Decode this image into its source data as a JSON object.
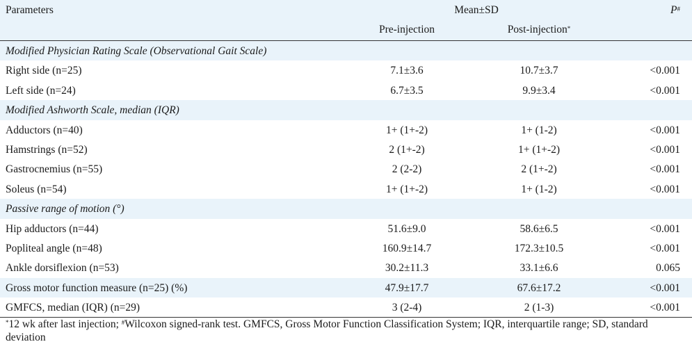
{
  "header": {
    "parameters": "Parameters",
    "group": "Mean±SD",
    "p_label": "P",
    "p_mark": "#",
    "pre": "Pre-injection",
    "post": "Post-injection",
    "post_mark": "*"
  },
  "sections": [
    {
      "title": "Modified Physician Rating Scale (Observational Gait Scale)",
      "rows": [
        {
          "param": "Right side (n=25)",
          "pre": "7.1±3.6",
          "post": "10.7±3.7",
          "p": "<0.001"
        },
        {
          "param": "Left side (n=24)",
          "pre": "6.7±3.5",
          "post": "9.9±3.4",
          "p": "<0.001"
        }
      ]
    },
    {
      "title": "Modified Ashworth Scale, median (IQR)",
      "rows": [
        {
          "param": "Adductors (n=40)",
          "pre": "1+ (1+-2)",
          "post": "1+ (1-2)",
          "p": "<0.001"
        },
        {
          "param": "Hamstrings (n=52)",
          "pre": "2 (1+-2)",
          "post": "1+ (1+-2)",
          "p": "<0.001"
        },
        {
          "param": "Gastrocnemius (n=55)",
          "pre": "2 (2-2)",
          "post": "2 (1+-2)",
          "p": "<0.001"
        },
        {
          "param": "Soleus (n=54)",
          "pre": "1+ (1+-2)",
          "post": "1+ (1-2)",
          "p": "<0.001"
        }
      ]
    },
    {
      "title": "Passive range of motion (°)",
      "rows": [
        {
          "param": "Hip adductors (n=44)",
          "pre": "51.6±9.0",
          "post": "58.6±6.5",
          "p": "<0.001"
        },
        {
          "param": "Popliteal angle (n=48)",
          "pre": "160.9±14.7",
          "post": "172.3±10.5",
          "p": "<0.001"
        },
        {
          "param": "Ankle dorsiflexion (n=53)",
          "pre": "30.2±11.3",
          "post": "33.1±6.6",
          "p": "0.065"
        }
      ]
    }
  ],
  "extra_rows": [
    {
      "param": "Gross motor function measure (n=25) (%)",
      "pre": "47.9±17.7",
      "post": "67.6±17.2",
      "p": "<0.001"
    },
    {
      "param": "GMFCS, median (IQR) (n=29)",
      "pre": "3 (2-4)",
      "post": "2 (1-3)",
      "p": "<0.001"
    }
  ],
  "footnote": {
    "mark1": "*",
    "text1": "12 wk after last injection; ",
    "mark2": "#",
    "text2": "Wilcoxon signed-rank test. GMFCS, Gross Motor Function Classification System; IQR, interquartile range; SD, standard deviation"
  }
}
